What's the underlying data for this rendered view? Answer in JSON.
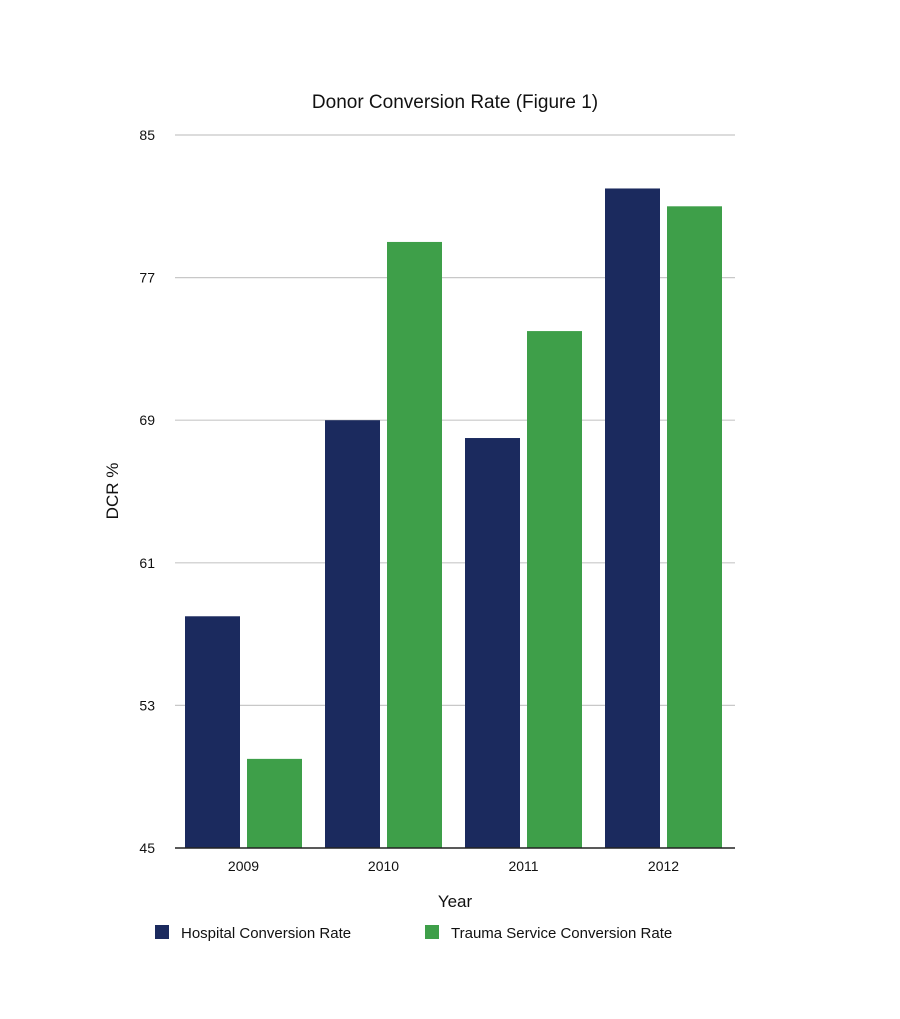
{
  "chart_data": {
    "type": "bar",
    "title": "Donor Conversion Rate (Figure 1)",
    "xlabel": "Year",
    "ylabel": "DCR %",
    "categories": [
      "2009",
      "2010",
      "2011",
      "2012"
    ],
    "ylim": [
      45,
      85
    ],
    "yticks": [
      45,
      53,
      61,
      69,
      77,
      85
    ],
    "grid": true,
    "legend_position": "bottom",
    "series": [
      {
        "name": "Hospital Conversion Rate",
        "color": "#1b2a5e",
        "values": [
          58,
          69,
          68,
          82
        ]
      },
      {
        "name": "Trauma Service Conversion Rate",
        "color": "#3e9f49",
        "values": [
          50,
          79,
          74,
          81
        ]
      }
    ]
  }
}
